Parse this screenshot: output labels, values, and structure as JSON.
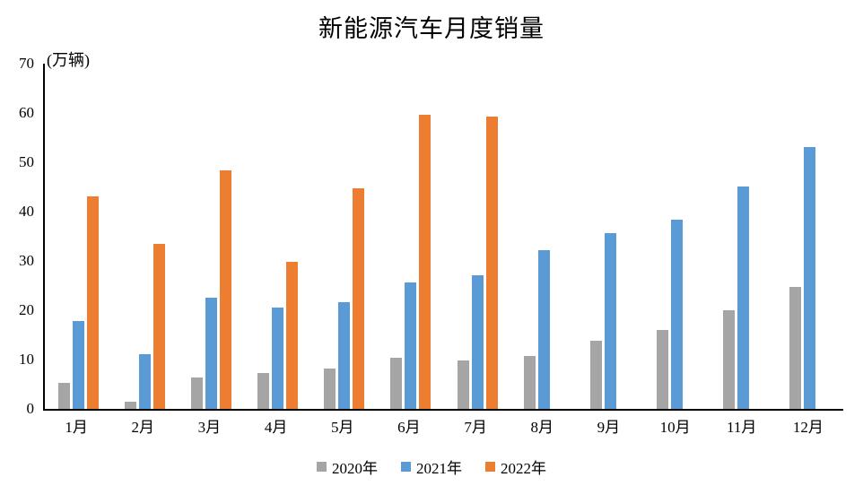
{
  "chart_data": {
    "type": "bar",
    "title": "新能源汽车月度销量",
    "ylabel": "(万辆)",
    "xlabel": "",
    "ylim": [
      0,
      70
    ],
    "y_ticks": [
      0,
      10,
      20,
      30,
      40,
      50,
      60,
      70
    ],
    "grid": false,
    "legend_position": "bottom",
    "categories": [
      "1月",
      "2月",
      "3月",
      "4月",
      "5月",
      "6月",
      "7月",
      "8月",
      "9月",
      "10月",
      "11月",
      "12月"
    ],
    "series": [
      {
        "name": "2020年",
        "color": "#A5A5A5",
        "values": [
          5.2,
          1.5,
          6.4,
          7.2,
          8.2,
          10.4,
          9.8,
          10.8,
          13.8,
          16.0,
          20.0,
          24.8
        ]
      },
      {
        "name": "2021年",
        "color": "#5B9BD5",
        "values": [
          17.9,
          11.0,
          22.6,
          20.6,
          21.7,
          25.6,
          27.1,
          32.1,
          35.7,
          38.3,
          45.0,
          53.1
        ]
      },
      {
        "name": "2022年",
        "color": "#ED7D31",
        "values": [
          43.1,
          33.4,
          48.4,
          29.9,
          44.7,
          59.6,
          59.3,
          null,
          null,
          null,
          null,
          null
        ]
      }
    ]
  },
  "colors": {
    "axis": "#000000",
    "text": "#000000",
    "background": "#FFFFFF"
  }
}
